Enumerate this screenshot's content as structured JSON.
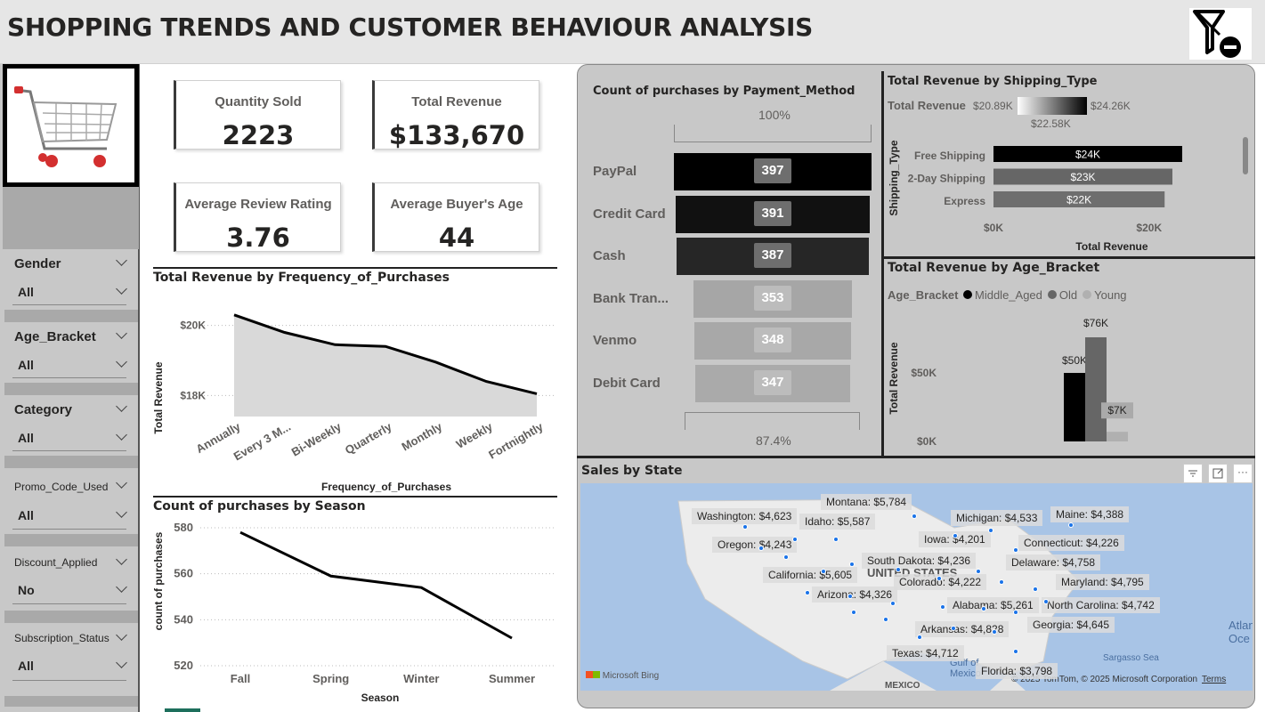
{
  "header": {
    "title": "SHOPPING TRENDS AND CUSTOMER BEHAVIOUR ANALYSIS"
  },
  "slicers": [
    {
      "label": "Gender",
      "value": "All"
    },
    {
      "label": "Age_Bracket",
      "value": "All"
    },
    {
      "label": "Category",
      "value": "All"
    },
    {
      "label": "Promo_Code_Used",
      "value": "All"
    },
    {
      "label": "Discount_Applied",
      "value": "No"
    },
    {
      "label": "Subscription_Status",
      "value": "All"
    }
  ],
  "kpis": {
    "quantity_sold": {
      "label": "Quantity Sold",
      "value": "2223"
    },
    "total_revenue": {
      "label": "Total Revenue",
      "value": "$133,670"
    },
    "avg_rating": {
      "label": "Average Review Rating",
      "value": "3.76"
    },
    "avg_age": {
      "label": "Average Buyer's Age",
      "value": "44"
    }
  },
  "freq_chart": {
    "title": "Total Revenue by Frequency_of_Purchases",
    "chart_data": {
      "type": "area",
      "categories": [
        "Annually",
        "Every 3 M...",
        "Bi-Weekly",
        "Quarterly",
        "Monthly",
        "Weekly",
        "Fortnightly"
      ],
      "values": [
        20.3,
        19.8,
        19.45,
        19.4,
        18.95,
        18.4,
        18.05
      ],
      "xlabel": "Frequency_of_Purchases",
      "ylabel": "Total Revenue",
      "yticks": [
        "$20K",
        "$18K"
      ]
    }
  },
  "season_chart": {
    "title": "Count of purchases by Season",
    "chart_data": {
      "type": "line",
      "categories": [
        "Fall",
        "Spring",
        "Winter",
        "Summer"
      ],
      "values": [
        578,
        559,
        554,
        532
      ],
      "xlabel": "Season",
      "ylabel": "count of purchases",
      "ylim": [
        520,
        580
      ],
      "yticks": [
        "580",
        "560",
        "540",
        "520"
      ]
    }
  },
  "payment_chart": {
    "title": "Count of purchases by Payment_Method",
    "top_pct": "100%",
    "bottom_pct": "87.4%",
    "chart_data": {
      "type": "bar",
      "categories": [
        "PayPal",
        "Credit Card",
        "Cash",
        "Bank Tran...",
        "Venmo",
        "Debit Card"
      ],
      "values": [
        397,
        391,
        387,
        353,
        348,
        347
      ],
      "colors": [
        "#000000",
        "#111111",
        "#262626",
        "#a6a6a6",
        "#a8a8a8",
        "#aaaaaa"
      ]
    }
  },
  "shipping_chart": {
    "title": "Total Revenue by Shipping_Type",
    "legend_label": "Total Revenue",
    "legend_min": "$20.89K",
    "legend_max": "$24.26K",
    "legend_mid": "$22.58K",
    "ylabel": "Shipping_Type",
    "xlabel": "Total Revenue",
    "xticks": [
      "$0K",
      "$20K"
    ],
    "chart_data": {
      "type": "bar",
      "categories": [
        "Free Shipping",
        "2-Day Shipping",
        "Express"
      ],
      "values": [
        24.26,
        23.0,
        22.0
      ],
      "labels": [
        "$24K",
        "$23K",
        "$22K"
      ],
      "colors": [
        "#000000",
        "#666666",
        "#6e6e6e"
      ]
    }
  },
  "age_chart": {
    "title": "Total Revenue by Age_Bracket",
    "legend_title": "Age_Bracket",
    "ylabel": "Total Revenue",
    "yticks": [
      "$50K",
      "$0K"
    ],
    "chart_data": {
      "type": "bar",
      "series": [
        {
          "name": "Middle_Aged",
          "value": 50,
          "label": "$50K",
          "color": "#000000"
        },
        {
          "name": "Old",
          "value": 76,
          "label": "$76K",
          "color": "#666666"
        },
        {
          "name": "Young",
          "value": 7,
          "label": "$7K",
          "color": "#b0b0b0"
        }
      ]
    }
  },
  "map": {
    "title": "Sales by State",
    "country_label": "UNITED STATES",
    "mexico_label": "MEXICO",
    "gulf_label": "Gulf of Mexico",
    "sargasso": "Sargasso Sea",
    "atlantic": "Atlan Oce",
    "bing": "Microsoft Bing",
    "copyright": "© 2025 TomTom, © 2025 Microsoft Corporation",
    "terms": "Terms",
    "states": [
      "Montana: $5,784",
      "Washington: $4,623",
      "Idaho: $5,587",
      "Michigan: $4,533",
      "Maine: $4,388",
      "Oregon: $4,243",
      "Iowa: $4,201",
      "Connecticut: $4,226",
      "South Dakota: $4,236",
      "Delaware: $4,758",
      "California: $5,605",
      "Colorado: $4,222",
      "Maryland: $4,795",
      "Arizona: $4,326",
      "Alabama: $5,261",
      "North Carolina: $4,742",
      "Arkansas: $4,828",
      "Georgia: $4,645",
      "Texas: $4,712",
      "Florida: $3,798"
    ]
  }
}
